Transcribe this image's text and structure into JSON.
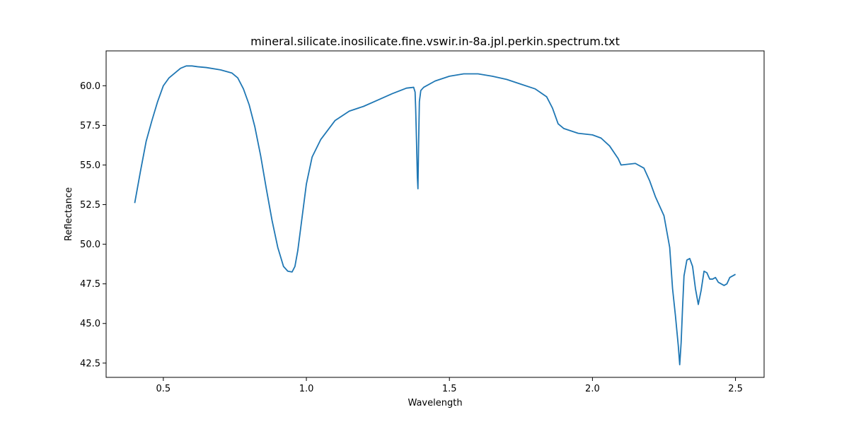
{
  "chart_data": {
    "type": "line",
    "title": "mineral.silicate.inosilicate.fine.vswir.in-8a.jpl.perkin.spectrum.txt",
    "xlabel": "Wavelength",
    "ylabel": "Reflectance",
    "xlim": [
      0.3,
      2.6
    ],
    "ylim": [
      41.6,
      62.2
    ],
    "xticks": [
      "0.5",
      "1.0",
      "1.5",
      "2.0",
      "2.5"
    ],
    "yticks": [
      "42.5",
      "45.0",
      "47.5",
      "50.0",
      "52.5",
      "55.0",
      "57.5",
      "60.0"
    ],
    "grid": false,
    "series": [
      {
        "color": "#1f77b4",
        "x": [
          0.4,
          0.42,
          0.44,
          0.46,
          0.48,
          0.5,
          0.52,
          0.54,
          0.56,
          0.58,
          0.6,
          0.62,
          0.65,
          0.7,
          0.74,
          0.76,
          0.78,
          0.8,
          0.82,
          0.84,
          0.86,
          0.88,
          0.9,
          0.92,
          0.935,
          0.95,
          0.96,
          0.97,
          0.98,
          1.0,
          1.02,
          1.05,
          1.1,
          1.15,
          1.2,
          1.25,
          1.3,
          1.35,
          1.375,
          1.38,
          1.382,
          1.385,
          1.388,
          1.39,
          1.392,
          1.395,
          1.4,
          1.41,
          1.45,
          1.5,
          1.55,
          1.6,
          1.65,
          1.7,
          1.75,
          1.8,
          1.84,
          1.86,
          1.88,
          1.9,
          1.95,
          2.0,
          2.03,
          2.06,
          2.09,
          2.1,
          2.15,
          2.18,
          2.2,
          2.22,
          2.25,
          2.27,
          2.28,
          2.29,
          2.3,
          2.305,
          2.31,
          2.315,
          2.32,
          2.33,
          2.34,
          2.35,
          2.36,
          2.37,
          2.38,
          2.39,
          2.4,
          2.41,
          2.42,
          2.43,
          2.44,
          2.45,
          2.46,
          2.47,
          2.48,
          2.49,
          2.5
        ],
        "y": [
          52.6,
          54.6,
          56.5,
          57.8,
          59.0,
          60.0,
          60.5,
          60.8,
          61.1,
          61.25,
          61.25,
          61.2,
          61.15,
          61.0,
          60.8,
          60.5,
          59.8,
          58.8,
          57.4,
          55.6,
          53.5,
          51.5,
          49.8,
          48.6,
          48.3,
          48.25,
          48.6,
          49.6,
          51.0,
          53.8,
          55.5,
          56.6,
          57.8,
          58.4,
          58.7,
          59.1,
          59.5,
          59.85,
          59.9,
          59.6,
          58.6,
          56.5,
          54.2,
          53.5,
          56.0,
          59.0,
          59.7,
          59.9,
          60.3,
          60.6,
          60.75,
          60.75,
          60.6,
          60.4,
          60.1,
          59.8,
          59.3,
          58.6,
          57.6,
          57.3,
          57.0,
          56.9,
          56.7,
          56.2,
          55.4,
          55.0,
          55.1,
          54.8,
          54.0,
          53.0,
          51.8,
          49.8,
          47.2,
          45.5,
          43.6,
          42.4,
          43.8,
          46.0,
          48.0,
          49.0,
          49.1,
          48.6,
          47.2,
          46.2,
          47.1,
          48.3,
          48.2,
          47.8,
          47.8,
          47.9,
          47.6,
          47.5,
          47.4,
          47.5,
          47.9,
          48.0,
          48.1
        ]
      }
    ]
  }
}
